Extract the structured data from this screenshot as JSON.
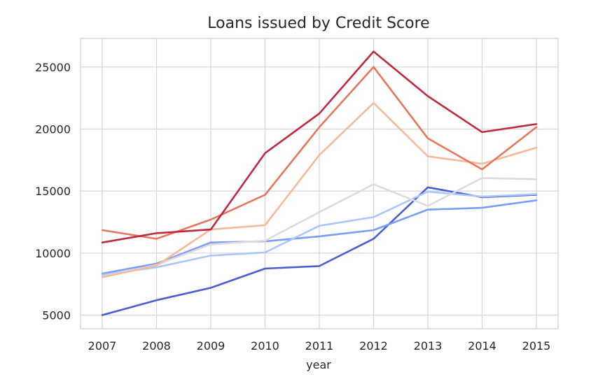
{
  "chart_data": {
    "type": "line",
    "title": "Loans issued by Credit Score",
    "xlabel": "year",
    "ylabel": "",
    "x": [
      2007,
      2008,
      2009,
      2010,
      2011,
      2012,
      2013,
      2014,
      2015
    ],
    "xlim": [
      2006.6,
      2015.4
    ],
    "ylim": [
      3900,
      27300
    ],
    "yticks": [
      5000,
      10000,
      15000,
      20000,
      25000
    ],
    "grid": true,
    "series": [
      {
        "color": "#4b5ed0",
        "values": [
          5000,
          6200,
          7200,
          8750,
          8950,
          11150,
          15300,
          14500,
          14700
        ]
      },
      {
        "color": "#7a9df8",
        "values": [
          8350,
          9150,
          10850,
          10950,
          11350,
          11850,
          13500,
          13650,
          14250
        ]
      },
      {
        "color": "#aac7fd",
        "values": [
          8250,
          8850,
          9800,
          10050,
          12200,
          12900,
          14950,
          14550,
          14750
        ]
      },
      {
        "color": "#dddcdc",
        "values": [
          8100,
          9050,
          10700,
          11000,
          13300,
          15550,
          13800,
          16050,
          15950
        ]
      },
      {
        "color": "#f7b89c",
        "values": [
          8050,
          9000,
          11900,
          12250,
          17900,
          22100,
          17800,
          17200,
          18500
        ]
      },
      {
        "color": "#e8765c",
        "values": [
          11850,
          11150,
          12700,
          14700,
          20150,
          25000,
          19250,
          16750,
          20150
        ]
      },
      {
        "color": "#c0283f",
        "values": [
          10850,
          11600,
          11900,
          18050,
          21250,
          26250,
          22650,
          19750,
          20400
        ]
      }
    ]
  }
}
